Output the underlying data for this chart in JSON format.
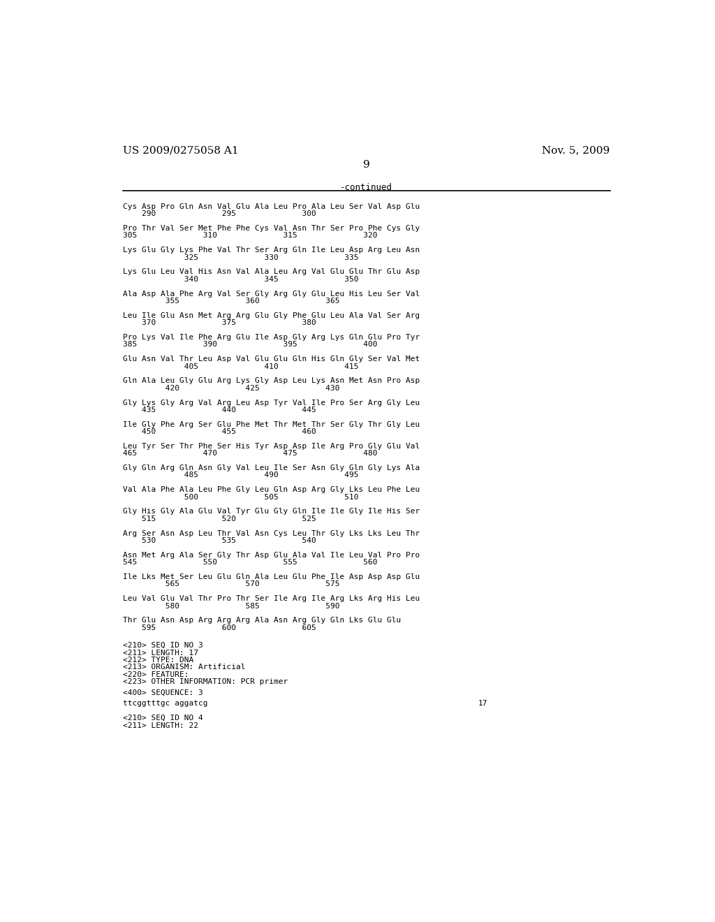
{
  "header_left": "US 2009/0275058 A1",
  "header_right": "Nov. 5, 2009",
  "page_number": "9",
  "continued_label": "-continued",
  "background_color": "#ffffff",
  "text_color": "#000000",
  "protein_blocks": [
    [
      "Cys Asp Pro Gln Asn Val Glu Ala Leu Pro Ala Leu Ser Val Asp Glu",
      "    290              295              300"
    ],
    [
      "Pro Thr Val Ser Met Phe Phe Cys Val Asn Thr Ser Pro Phe Cys Gly",
      "305              310              315              320"
    ],
    [
      "Lys Glu Gly Lys Phe Val Thr Ser Arg Gln Ile Leu Asp Arg Leu Asn",
      "             325              330              335"
    ],
    [
      "Lys Glu Leu Val His Asn Val Ala Leu Arg Val Glu Glu Thr Glu Asp",
      "             340              345              350"
    ],
    [
      "Ala Asp Ala Phe Arg Val Ser Gly Arg Gly Glu Leu His Leu Ser Val",
      "         355              360              365"
    ],
    [
      "Leu Ile Glu Asn Met Arg Arg Glu Gly Phe Glu Leu Ala Val Ser Arg",
      "    370              375              380"
    ],
    [
      "Pro Lys Val Ile Phe Arg Glu Ile Asp Gly Arg Lys Gln Glu Pro Tyr",
      "385              390              395              400"
    ],
    [
      "Glu Asn Val Thr Leu Asp Val Glu Glu Gln His Gln Gly Ser Val Met",
      "             405              410              415"
    ],
    [
      "Gln Ala Leu Gly Glu Arg Lys Gly Asp Leu Lys Asn Met Asn Pro Asp",
      "         420              425              430"
    ],
    [
      "Gly Lys Gly Arg Val Arg Leu Asp Tyr Val Ile Pro Ser Arg Gly Leu",
      "    435              440              445"
    ],
    [
      "Ile Gly Phe Arg Ser Glu Phe Met Thr Met Thr Ser Gly Thr Gly Leu",
      "    450              455              460"
    ],
    [
      "Leu Tyr Ser Thr Phe Ser His Tyr Asp Asp Ile Arg Pro Gly Glu Val",
      "465              470              475              480"
    ],
    [
      "Gly Gln Arg Gln Asn Gly Val Leu Ile Ser Asn Gly Gln Gly Lys Ala",
      "             485              490              495"
    ],
    [
      "Val Ala Phe Ala Leu Phe Gly Leu Gln Asp Arg Gly Lks Leu Phe Leu",
      "             500              505              510"
    ],
    [
      "Gly His Gly Ala Glu Val Tyr Glu Gly Gln Ile Ile Gly Ile His Ser",
      "    515              520              525"
    ],
    [
      "Arg Ser Asn Asp Leu Thr Val Asn Cys Leu Thr Gly Lks Lks Leu Thr",
      "    530              535              540"
    ],
    [
      "Asn Met Arg Ala Ser Gly Thr Asp Glu Ala Val Ile Leu Val Pro Pro",
      "545              550              555              560"
    ],
    [
      "Ile Lks Met Ser Leu Glu Gln Ala Leu Glu Phe Ile Asp Asp Asp Glu",
      "         565              570              575"
    ],
    [
      "Leu Val Glu Val Thr Pro Thr Ser Ile Arg Ile Arg Lks Arg His Leu",
      "         580              585              590"
    ],
    [
      "Thr Glu Asn Asp Arg Arg Arg Ala Asn Arg Gly Gln Lks Glu Glu",
      "    595              600              605"
    ]
  ],
  "seq_block": [
    "<210> SEQ ID NO 3",
    "<211> LENGTH: 17",
    "<212> TYPE: DNA",
    "<213> ORGANISM: Artificial",
    "<220> FEATURE:",
    "<223> OTHER INFORMATION: PCR primer"
  ],
  "seq_label": "<400> SEQUENCE: 3",
  "dna_seq": "ttcggtttgc aggatcg",
  "dna_num": "17",
  "final_lines": [
    "<210> SEQ ID NO 4",
    "<211> LENGTH: 22"
  ]
}
